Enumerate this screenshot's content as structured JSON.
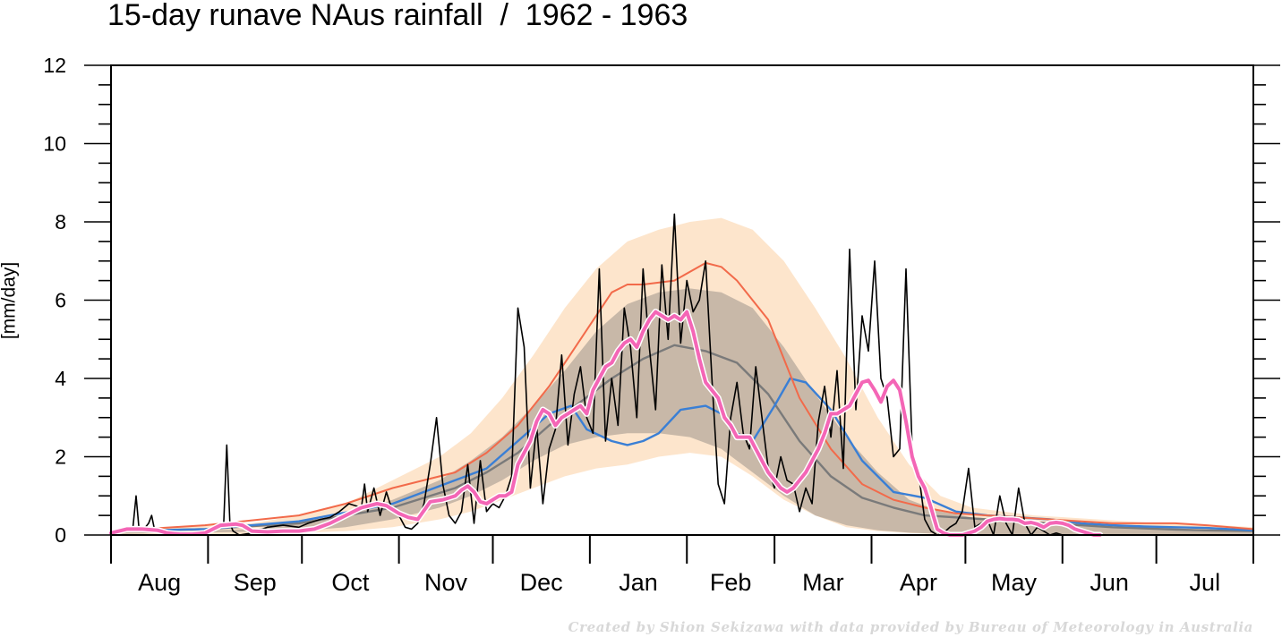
{
  "chart_data": {
    "type": "line",
    "title": "15-day runave NAus rainfall  /  1962 - 1963",
    "ylabel": "[mm/day]",
    "xlabel": "",
    "ylim": [
      0,
      12
    ],
    "yticks": [
      0,
      2,
      4,
      6,
      8,
      10,
      12
    ],
    "months": [
      "Aug",
      "Sep",
      "Oct",
      "Nov",
      "Dec",
      "Jan",
      "Feb",
      "Mar",
      "Apr",
      "May",
      "Jun",
      "Jul"
    ],
    "month_lengths": [
      31,
      30,
      31,
      30,
      31,
      31,
      28,
      31,
      30,
      31,
      30,
      31
    ],
    "band_outer_color": "#fde5cc",
    "band_inner_color": "#c8b8a8",
    "band_outer": {
      "x": [
        0,
        20,
        45,
        60,
        75,
        90,
        105,
        115,
        125,
        135,
        145,
        155,
        165,
        175,
        185,
        195,
        205,
        215,
        225,
        235,
        245,
        255,
        265,
        275,
        285,
        295,
        305,
        315,
        325,
        335,
        345,
        355,
        365
      ],
      "low": [
        0,
        0.02,
        0.02,
        0.05,
        0.1,
        0.2,
        0.4,
        0.6,
        0.9,
        1.2,
        1.5,
        1.7,
        1.8,
        2.0,
        2.1,
        2.0,
        1.5,
        0.9,
        0.5,
        0.2,
        0.1,
        0.05,
        0.02,
        0,
        0,
        0,
        0,
        0,
        0,
        0,
        0,
        0,
        0
      ],
      "high": [
        0.1,
        0.2,
        0.3,
        0.5,
        0.8,
        1.4,
        2.0,
        2.6,
        3.5,
        4.6,
        5.8,
        6.8,
        7.5,
        7.8,
        8.0,
        8.1,
        7.8,
        7.0,
        5.8,
        4.5,
        3.0,
        1.8,
        1.0,
        0.7,
        0.6,
        0.5,
        0.45,
        0.4,
        0.35,
        0.3,
        0.3,
        0.25,
        0.2
      ]
    },
    "band_inner": {
      "x": [
        0,
        20,
        45,
        60,
        75,
        90,
        105,
        115,
        125,
        135,
        145,
        155,
        165,
        175,
        185,
        195,
        205,
        215,
        225,
        235,
        245,
        255,
        265,
        275,
        285,
        295,
        305,
        315,
        325,
        335,
        345,
        355,
        365
      ],
      "low": [
        0.02,
        0.05,
        0.08,
        0.1,
        0.2,
        0.4,
        0.7,
        1.0,
        1.4,
        1.9,
        2.3,
        2.5,
        2.6,
        2.6,
        2.5,
        2.2,
        1.6,
        1.0,
        0.5,
        0.25,
        0.12,
        0.06,
        0.03,
        0.02,
        0.01,
        0.01,
        0,
        0,
        0,
        0,
        0,
        0,
        0
      ],
      "high": [
        0.06,
        0.1,
        0.15,
        0.3,
        0.5,
        0.9,
        1.4,
        1.9,
        2.5,
        3.3,
        4.2,
        5.2,
        5.9,
        6.2,
        6.3,
        6.2,
        5.8,
        4.8,
        3.6,
        2.5,
        1.6,
        0.9,
        0.6,
        0.45,
        0.4,
        0.35,
        0.3,
        0.25,
        0.2,
        0.2,
        0.15,
        0.12,
        0.1
      ]
    },
    "series": [
      {
        "id": "mean",
        "color": "#7a7a7a",
        "width": 2.4,
        "x": [
          0,
          30,
          60,
          90,
          110,
          120,
          130,
          140,
          150,
          160,
          170,
          180,
          190,
          200,
          210,
          220,
          230,
          240,
          250,
          260,
          270,
          280,
          290,
          300,
          310,
          320,
          330,
          340,
          350,
          365
        ],
        "y": [
          0.1,
          0.15,
          0.3,
          0.7,
          1.2,
          1.6,
          2.1,
          2.8,
          3.4,
          4.0,
          4.5,
          4.85,
          4.7,
          4.4,
          3.6,
          2.4,
          1.5,
          0.95,
          0.7,
          0.5,
          0.45,
          0.4,
          0.35,
          0.3,
          0.25,
          0.2,
          0.17,
          0.14,
          0.12,
          0.1
        ]
      },
      {
        "id": "median",
        "color": "#3a7fd5",
        "width": 2.4,
        "x": [
          0,
          30,
          60,
          90,
          110,
          120,
          130,
          140,
          147,
          152,
          160,
          165,
          170,
          175,
          182,
          190,
          195,
          200,
          205,
          212,
          217,
          222,
          230,
          240,
          250,
          260,
          270,
          280,
          290,
          300,
          310,
          320,
          330,
          340,
          350,
          365
        ],
        "y": [
          0.1,
          0.15,
          0.35,
          0.8,
          1.4,
          1.7,
          2.4,
          3.1,
          3.3,
          2.7,
          2.4,
          2.3,
          2.4,
          2.6,
          3.2,
          3.3,
          3.1,
          2.6,
          2.4,
          3.3,
          4.0,
          3.9,
          3.2,
          1.9,
          1.1,
          0.95,
          0.6,
          0.5,
          0.45,
          0.4,
          0.3,
          0.25,
          0.22,
          0.2,
          0.18,
          0.12
        ]
      },
      {
        "id": "upper",
        "color": "#f26a4a",
        "width": 2.0,
        "x": [
          0,
          30,
          60,
          75,
          90,
          110,
          120,
          130,
          140,
          150,
          160,
          165,
          170,
          180,
          190,
          195,
          200,
          210,
          215,
          220,
          230,
          240,
          250,
          260,
          270,
          280,
          290,
          300,
          310,
          320,
          330,
          340,
          350,
          365
        ],
        "y": [
          0.1,
          0.25,
          0.5,
          0.8,
          1.2,
          1.6,
          2.1,
          2.8,
          3.8,
          5.0,
          6.2,
          6.4,
          6.4,
          6.5,
          6.95,
          6.85,
          6.5,
          5.5,
          4.5,
          3.5,
          2.2,
          1.3,
          0.9,
          0.7,
          0.55,
          0.5,
          0.45,
          0.4,
          0.35,
          0.3,
          0.3,
          0.3,
          0.25,
          0.15
        ]
      },
      {
        "id": "daily",
        "color": "#000000",
        "width": 1.6,
        "x": [
          0,
          4,
          7,
          8,
          9,
          10,
          12,
          13,
          14,
          16,
          18,
          22,
          26,
          30,
          33,
          36,
          37,
          38,
          39,
          41,
          45,
          50,
          55,
          60,
          63,
          67,
          70,
          73,
          76,
          80,
          81,
          82,
          84,
          86,
          88,
          90,
          92,
          94,
          96,
          98,
          100,
          102,
          104,
          106,
          108,
          110,
          112,
          114,
          116,
          118,
          120,
          122,
          124,
          126,
          128,
          130,
          132,
          134,
          136,
          138,
          140,
          142,
          144,
          146,
          148,
          150,
          152,
          154,
          156,
          158,
          160,
          162,
          164,
          166,
          168,
          170,
          172,
          174,
          176,
          178,
          180,
          182,
          184,
          186,
          188,
          190,
          192,
          194,
          196,
          198,
          200,
          202,
          204,
          206,
          208,
          210,
          212,
          214,
          216,
          218,
          220,
          222,
          224,
          226,
          228,
          230,
          232,
          234,
          236,
          238,
          240,
          242,
          244,
          246,
          248,
          250,
          252,
          254,
          256,
          258,
          260,
          262,
          264,
          266,
          268,
          270,
          272,
          274,
          276,
          278,
          280,
          282,
          284,
          286,
          288,
          290,
          292,
          294,
          296,
          298,
          300,
          302,
          304,
          306,
          308,
          310
        ],
        "y": [
          0.0,
          0.1,
          0.2,
          1.0,
          0.1,
          0.1,
          0.3,
          0.5,
          0.1,
          0.05,
          0.0,
          0.0,
          0.0,
          0.05,
          0.1,
          0.3,
          2.3,
          0.3,
          0.1,
          0.0,
          0.05,
          0.2,
          0.25,
          0.2,
          0.3,
          0.4,
          0.45,
          0.6,
          0.8,
          0.7,
          1.3,
          0.6,
          1.2,
          0.5,
          1.1,
          0.6,
          0.5,
          0.2,
          0.15,
          0.3,
          0.8,
          1.8,
          3.0,
          1.3,
          0.5,
          0.3,
          0.6,
          1.8,
          0.3,
          1.9,
          0.6,
          0.8,
          0.7,
          1.0,
          1.5,
          5.8,
          4.8,
          1.2,
          2.8,
          0.8,
          2.2,
          2.7,
          4.6,
          2.3,
          3.6,
          4.3,
          3.0,
          2.6,
          6.8,
          2.4,
          4.0,
          2.8,
          5.8,
          4.8,
          3.0,
          6.8,
          4.8,
          3.2,
          6.9,
          5.0,
          8.2,
          4.9,
          6.5,
          5.7,
          6.0,
          7.0,
          4.0,
          1.3,
          0.8,
          3.0,
          3.9,
          2.6,
          2.2,
          4.3,
          3.0,
          1.7,
          1.2,
          2.0,
          1.4,
          1.3,
          0.6,
          1.2,
          0.8,
          2.9,
          3.8,
          2.5,
          4.2,
          1.7,
          7.3,
          3.2,
          5.6,
          4.7,
          7.0,
          4.0,
          3.5,
          2.0,
          2.2,
          6.8,
          2.2,
          1.6,
          0.4,
          0.1,
          0.0,
          0.05,
          0.2,
          0.3,
          0.6,
          1.7,
          0.2,
          0.3,
          0.4,
          0.0,
          1.0,
          0.3,
          0.0,
          1.2,
          0.3,
          0.0,
          0.2,
          0.1,
          0.0,
          0.05,
          0.0,
          0.0,
          0.0,
          0.0
        ]
      },
      {
        "id": "runave",
        "color": "#f466b6",
        "halo_color": "#ffffff",
        "width": 4.0,
        "x": [
          0,
          5,
          10,
          15,
          18,
          22,
          26,
          30,
          35,
          40,
          42,
          45,
          50,
          55,
          60,
          65,
          70,
          75,
          80,
          85,
          88,
          90,
          92,
          95,
          98,
          102,
          106,
          110,
          112,
          114,
          116,
          118,
          120,
          122,
          124,
          126,
          128,
          130,
          132,
          134,
          136,
          138,
          140,
          142,
          144,
          146,
          148,
          150,
          152,
          154,
          156,
          158,
          160,
          162,
          164,
          166,
          168,
          170,
          172,
          174,
          176,
          178,
          180,
          182,
          184,
          186,
          188,
          190,
          192,
          194,
          196,
          198,
          200,
          202,
          204,
          206,
          208,
          210,
          212,
          214,
          216,
          218,
          220,
          222,
          224,
          226,
          228,
          230,
          232,
          234,
          236,
          238,
          240,
          242,
          244,
          246,
          248,
          250,
          252,
          254,
          256,
          258,
          260,
          262,
          264,
          266,
          268,
          270,
          272,
          274,
          276,
          278,
          280,
          282,
          284,
          286,
          288,
          290,
          292,
          294,
          296,
          298,
          300,
          302,
          304,
          306,
          308,
          310,
          312,
          314,
          316
        ],
        "y": [
          0.05,
          0.15,
          0.15,
          0.12,
          0.05,
          0.02,
          0.02,
          0.05,
          0.25,
          0.28,
          0.25,
          0.1,
          0.08,
          0.1,
          0.1,
          0.15,
          0.3,
          0.5,
          0.7,
          0.8,
          0.75,
          0.65,
          0.55,
          0.45,
          0.4,
          0.85,
          0.9,
          1.0,
          1.15,
          1.25,
          1.1,
          0.85,
          0.8,
          0.9,
          1.0,
          1.0,
          1.1,
          1.8,
          2.1,
          2.4,
          2.9,
          3.2,
          3.1,
          2.8,
          3.0,
          3.1,
          3.2,
          3.3,
          3.1,
          3.7,
          4.0,
          4.3,
          4.4,
          4.7,
          4.9,
          5.0,
          4.8,
          5.2,
          5.5,
          5.7,
          5.6,
          5.5,
          5.6,
          5.5,
          5.7,
          5.2,
          4.5,
          3.9,
          3.7,
          3.5,
          3.0,
          2.8,
          2.5,
          2.5,
          2.5,
          2.2,
          1.9,
          1.6,
          1.4,
          1.2,
          1.1,
          1.2,
          1.4,
          1.6,
          1.9,
          2.2,
          2.6,
          3.1,
          3.1,
          3.2,
          3.3,
          3.6,
          3.9,
          3.95,
          3.7,
          3.4,
          3.8,
          3.95,
          3.7,
          2.9,
          2.0,
          1.5,
          1.2,
          0.7,
          0.15,
          0.05,
          0.0,
          0.0,
          0.0,
          0.05,
          0.1,
          0.2,
          0.35,
          0.4,
          0.42,
          0.4,
          0.4,
          0.38,
          0.3,
          0.32,
          0.28,
          0.2,
          0.3,
          0.32,
          0.3,
          0.25,
          0.15,
          0.1,
          0.05,
          0.0,
          0.0
        ]
      }
    ],
    "grid": false,
    "legend": "none"
  },
  "credit_text": "Created by Shion Sekizawa with data provided by Bureau of Meteorology in Australia"
}
